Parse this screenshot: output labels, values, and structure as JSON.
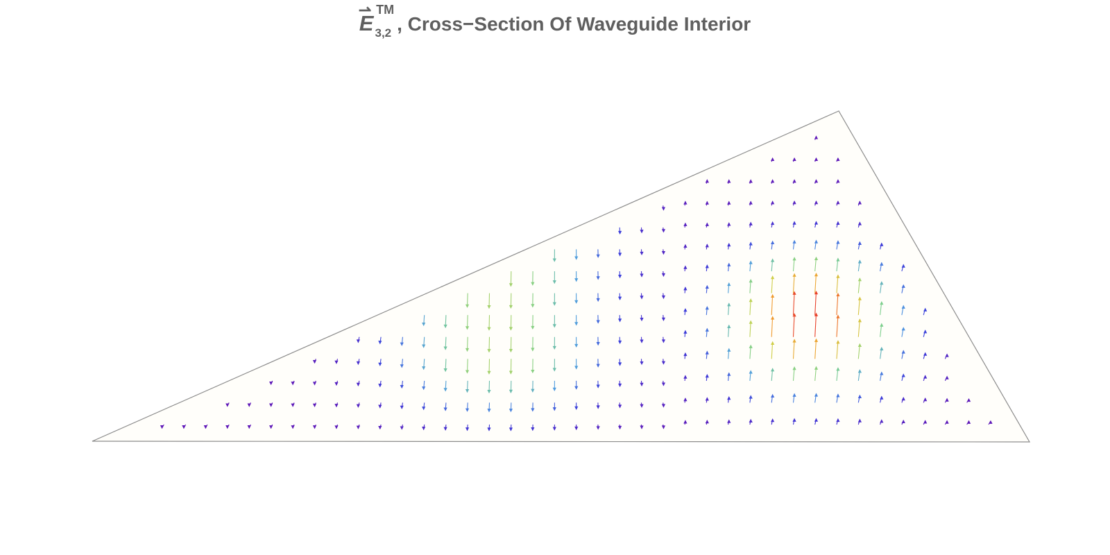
{
  "title": {
    "symbol": "E",
    "vector_mark": "⇀",
    "subscript": "3,2",
    "superscript": "TM",
    "text": ", Cross−Section Of Waveguide Interior"
  },
  "colors": {
    "title": "#5f5f5f",
    "boundary": "#8c8c8c",
    "fill": "#fffefa",
    "field_scale": [
      "#6a0dad",
      "#3b3bd9",
      "#4f9be0",
      "#7ccf8e",
      "#cbd34a",
      "#f0a030",
      "#e8402a"
    ]
  },
  "diagram": {
    "type": "vector_field",
    "domain_shape": "triangle",
    "mode": "TM 3,2"
  }
}
